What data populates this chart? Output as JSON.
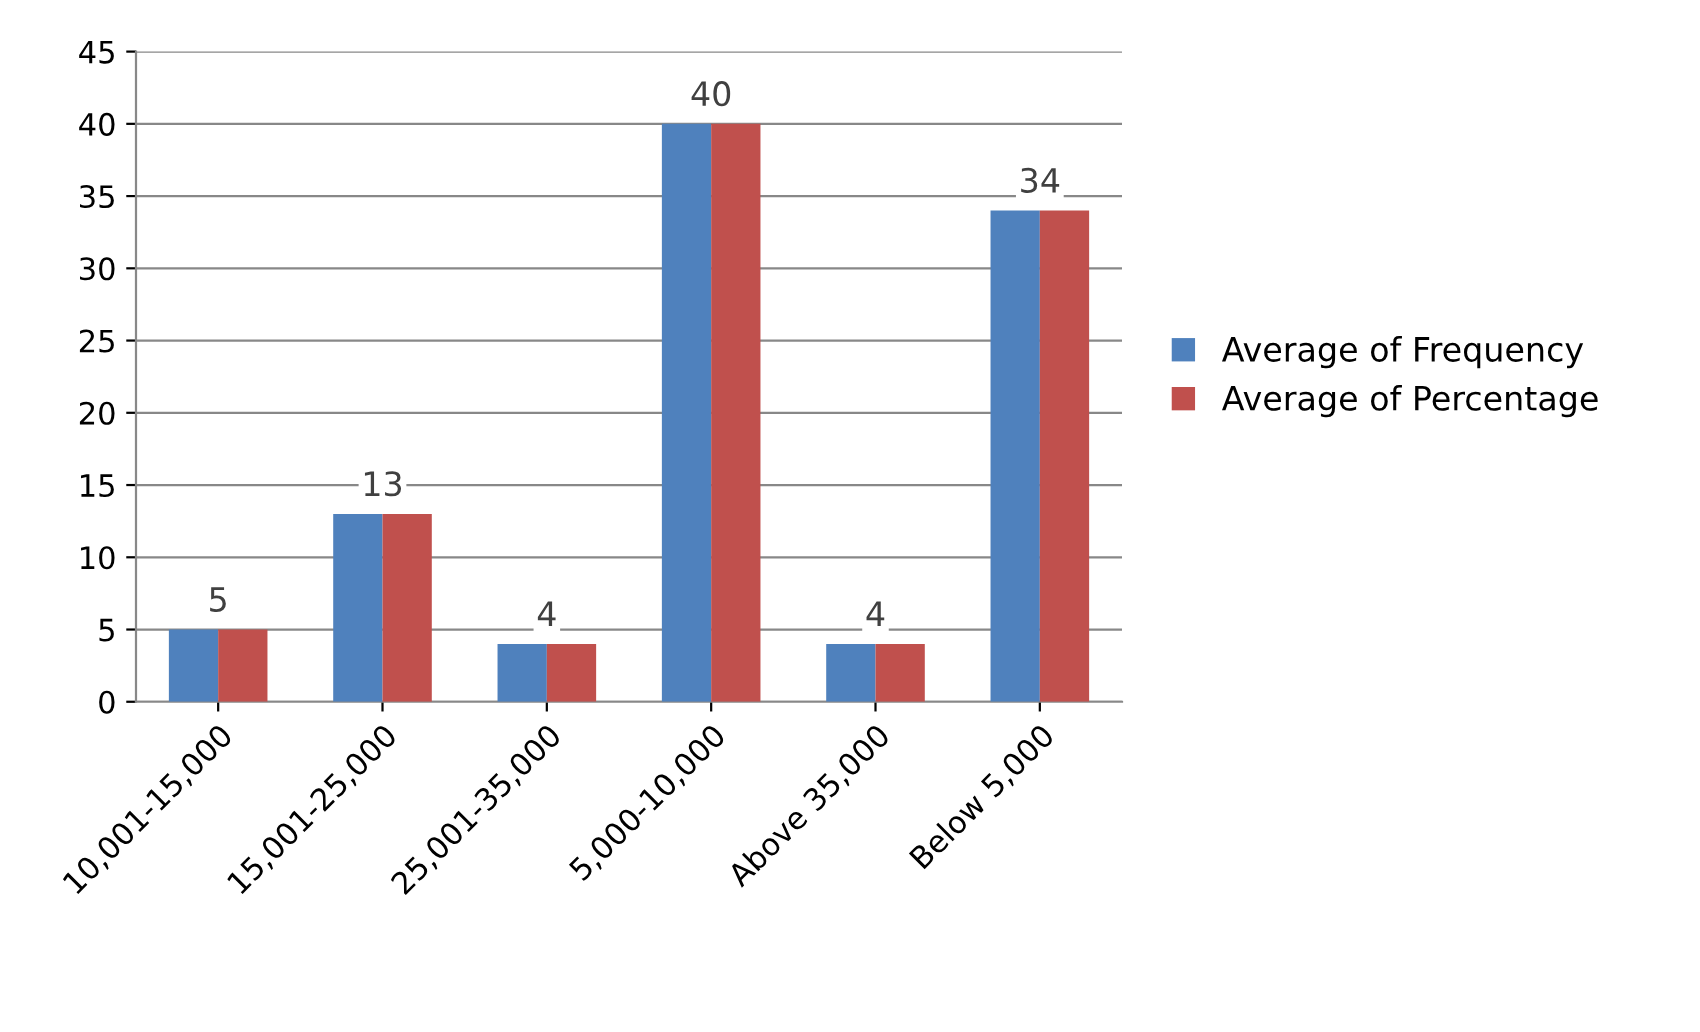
{
  "chart_data": {
    "type": "bar",
    "categories": [
      "10,001-15,000",
      "15,001-25,000",
      "25,001-35,000",
      "5,000-10,000",
      "Above 35,000",
      "Below 5,000"
    ],
    "series": [
      {
        "name": "Average of Frequency",
        "color": "#4f81bd",
        "values": [
          5,
          13,
          4,
          40,
          4,
          34
        ],
        "value_labels": [
          "5",
          "13",
          "4",
          "40",
          "4",
          "34"
        ]
      },
      {
        "name": "Average of Percentage",
        "color": "#c0504d",
        "values": [
          5,
          13,
          4,
          40,
          4,
          34
        ]
      }
    ],
    "ylim": [
      0,
      45
    ],
    "yticks": [
      0,
      5,
      10,
      15,
      20,
      25,
      30,
      35,
      40,
      45
    ],
    "grid": "y",
    "legend": "right"
  }
}
